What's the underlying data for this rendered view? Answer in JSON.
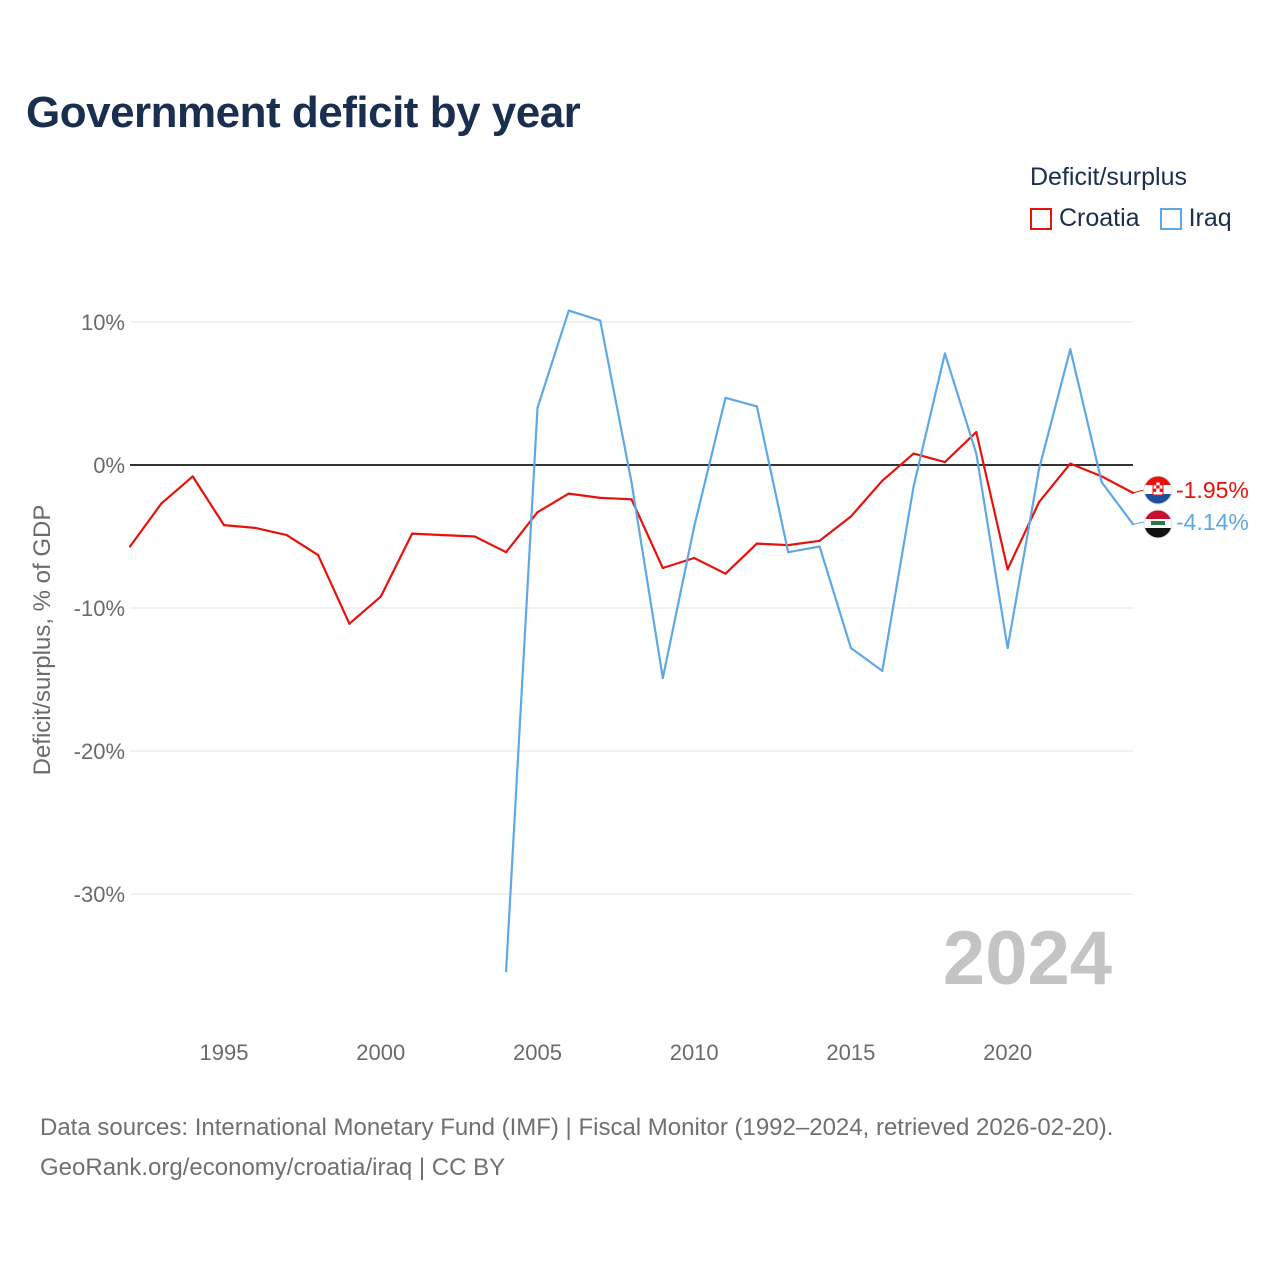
{
  "title": "Government deficit by year",
  "legend": {
    "title": "Deficit/surplus",
    "items": [
      {
        "label": "Croatia",
        "color": "#e8120c"
      },
      {
        "label": "Iraq",
        "color": "#5fa8e6"
      }
    ]
  },
  "footer": {
    "line1": "Data sources: International Monetary Fund (IMF) | Fiscal Monitor (1992–2024, retrieved 2026-02-20).",
    "line2": "GeoRank.org/economy/croatia/iraq | CC BY"
  },
  "chart_data": {
    "type": "line",
    "title": "Government deficit by year",
    "ylabel": "Deficit/surplus, % of GDP",
    "xlabel": "",
    "xlim": [
      1992,
      2024
    ],
    "ylim": [
      -38,
      12
    ],
    "x_ticks": [
      {
        "value": 1995,
        "label": "1995"
      },
      {
        "value": 2000,
        "label": "2000"
      },
      {
        "value": 2005,
        "label": "2005"
      },
      {
        "value": 2010,
        "label": "2010"
      },
      {
        "value": 2015,
        "label": "2015"
      },
      {
        "value": 2020,
        "label": "2020"
      }
    ],
    "y_ticks": [
      {
        "value": 10,
        "label": "10%"
      },
      {
        "value": 0,
        "label": "0%"
      },
      {
        "value": -10,
        "label": "-10%"
      },
      {
        "value": -20,
        "label": "-20%"
      },
      {
        "value": -30,
        "label": "-30%"
      }
    ],
    "current_year": "2024",
    "series": [
      {
        "name": "Croatia",
        "color": "#e8120c",
        "end_label": "-1.95%",
        "flag": "croatia-flag-icon",
        "points": [
          [
            1992,
            -5.7
          ],
          [
            1993,
            -2.7
          ],
          [
            1994,
            -0.8
          ],
          [
            1995,
            -4.2
          ],
          [
            1996,
            -4.4
          ],
          [
            1997,
            -4.9
          ],
          [
            1998,
            -6.3
          ],
          [
            1999,
            -11.1
          ],
          [
            2000,
            -9.2
          ],
          [
            2001,
            -4.8
          ],
          [
            2002,
            -4.9
          ],
          [
            2003,
            -5.0
          ],
          [
            2004,
            -6.1
          ],
          [
            2005,
            -3.3
          ],
          [
            2006,
            -2.0
          ],
          [
            2007,
            -2.3
          ],
          [
            2008,
            -2.4
          ],
          [
            2009,
            -7.2
          ],
          [
            2010,
            -6.5
          ],
          [
            2011,
            -7.6
          ],
          [
            2012,
            -5.5
          ],
          [
            2013,
            -5.6
          ],
          [
            2014,
            -5.3
          ],
          [
            2015,
            -3.6
          ],
          [
            2016,
            -1.1
          ],
          [
            2017,
            0.8
          ],
          [
            2018,
            0.2
          ],
          [
            2019,
            2.3
          ],
          [
            2020,
            -7.3
          ],
          [
            2021,
            -2.6
          ],
          [
            2022,
            0.1
          ],
          [
            2023,
            -0.8
          ],
          [
            2024,
            -1.95
          ]
        ]
      },
      {
        "name": "Iraq",
        "color": "#5fa8e6",
        "end_label": "-4.14%",
        "flag": "iraq-flag-icon",
        "points": [
          [
            2004,
            -35.4
          ],
          [
            2005,
            4.0
          ],
          [
            2006,
            10.8
          ],
          [
            2007,
            10.1
          ],
          [
            2008,
            -1.2
          ],
          [
            2009,
            -14.9
          ],
          [
            2010,
            -4.3
          ],
          [
            2011,
            4.7
          ],
          [
            2012,
            4.1
          ],
          [
            2013,
            -6.1
          ],
          [
            2014,
            -5.7
          ],
          [
            2015,
            -12.8
          ],
          [
            2016,
            -14.4
          ],
          [
            2017,
            -1.5
          ],
          [
            2018,
            7.8
          ],
          [
            2019,
            0.8
          ],
          [
            2020,
            -12.8
          ],
          [
            2021,
            -0.3
          ],
          [
            2022,
            8.1
          ],
          [
            2023,
            -1.2
          ],
          [
            2024,
            -4.14
          ]
        ]
      }
    ]
  }
}
